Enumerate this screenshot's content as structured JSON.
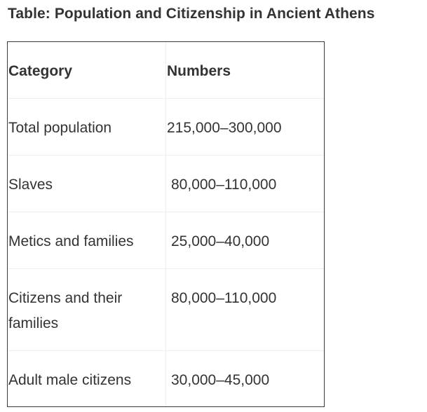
{
  "title": "Table: Population and Citizenship in Ancient Athens",
  "table": {
    "headers": [
      "Category",
      "Numbers"
    ],
    "rows": [
      [
        "Total population",
        "215,000–300,000"
      ],
      [
        "Slaves",
        "80,000–110,000"
      ],
      [
        "Metics and families",
        "25,000–40,000"
      ],
      [
        "Citizens and their families",
        "80,000–110,000"
      ],
      [
        "Adult male citizens",
        "30,000–45,000"
      ]
    ]
  }
}
